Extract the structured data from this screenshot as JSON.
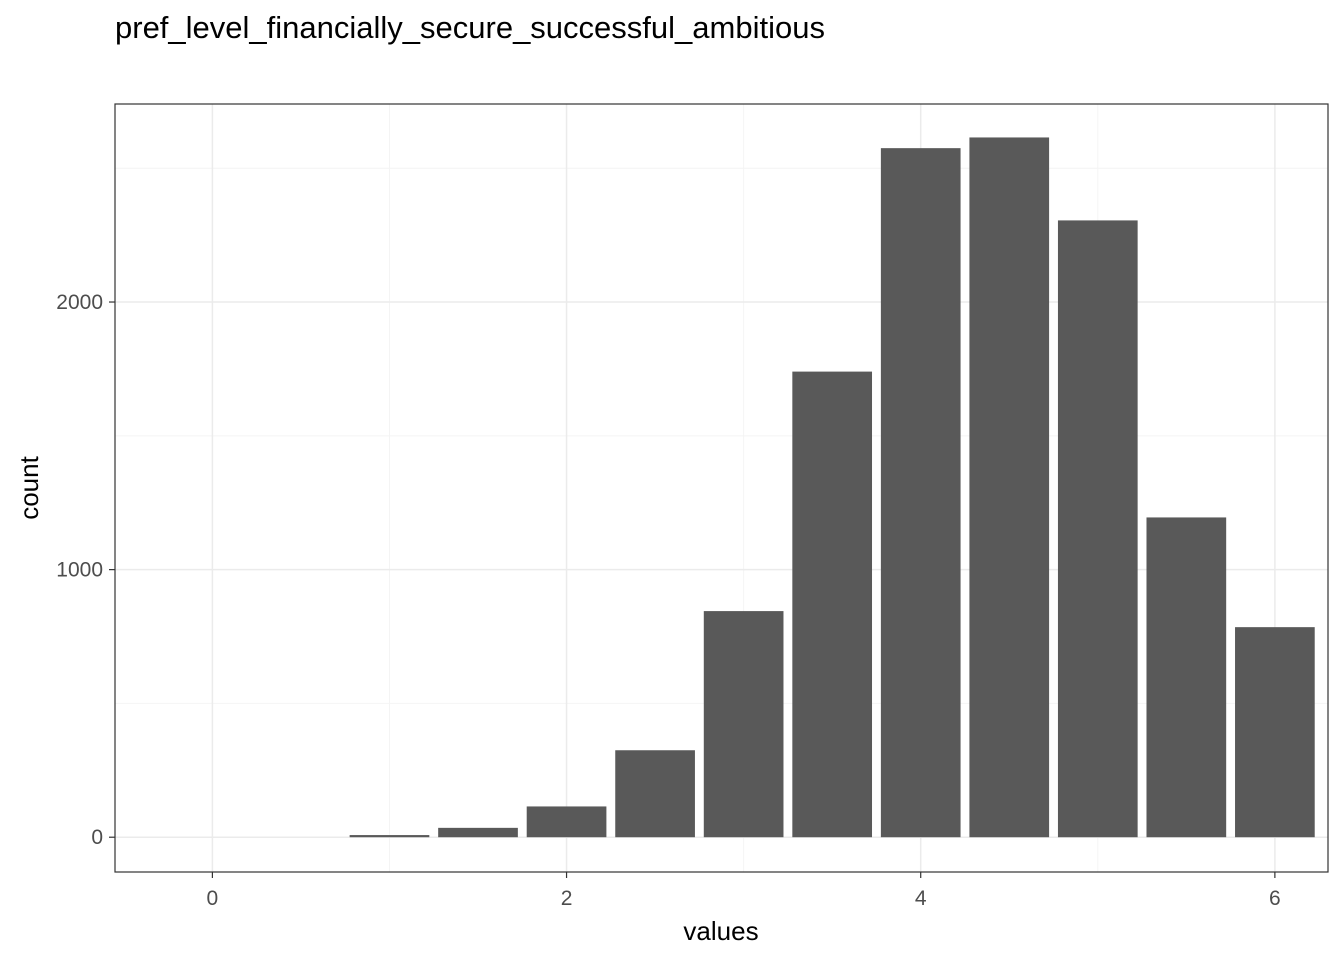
{
  "chart_data": {
    "type": "bar",
    "title": "pref_level_financially_secure_successful_ambitious",
    "xlabel": "values",
    "ylabel": "count",
    "x": [
      1,
      1.5,
      2,
      2.5,
      3,
      3.5,
      4,
      4.5,
      5,
      5.5,
      6
    ],
    "values": [
      8,
      35,
      115,
      325,
      845,
      1740,
      2575,
      2615,
      2305,
      1195,
      785
    ],
    "bar_width": 0.45,
    "xlim": [
      -0.55,
      6.3
    ],
    "ylim": [
      -130,
      2740
    ],
    "x_ticks": [
      0,
      2,
      4,
      6
    ],
    "y_ticks": [
      0,
      1000,
      2000
    ],
    "x_minor": [
      1,
      3,
      5
    ],
    "y_minor": [
      500,
      1500,
      2500
    ],
    "grid": true,
    "colors": {
      "bar": "#595959",
      "grid_major": "#ebebeb",
      "grid_minor": "#f4f4f4",
      "panel_border": "#333333",
      "tick_text": "#4d4d4d"
    }
  }
}
